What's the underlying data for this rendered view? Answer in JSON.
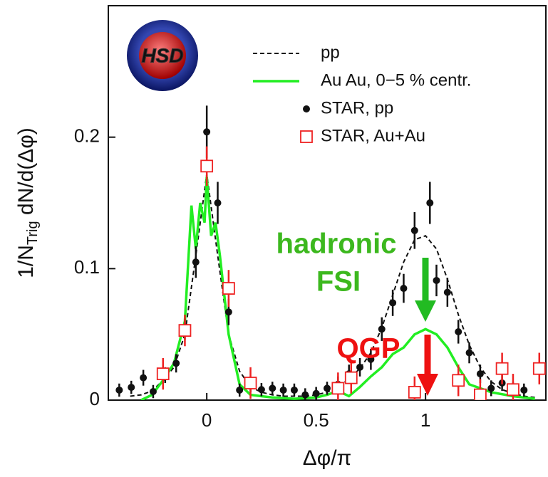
{
  "chart_data": {
    "type": "line",
    "y_label": [
      "1/N",
      "Trig",
      " dN/d(Δφ)"
    ],
    "x_label": "Δφ/π",
    "logo": "HSD",
    "annotations": [
      {
        "text": "hadronic",
        "color": "#3cb81e"
      },
      {
        "text": "FSI",
        "color": "#3cb81e"
      },
      {
        "text": "QGP",
        "color": "#ee1111"
      }
    ],
    "xlim": [
      -0.45,
      1.55
    ],
    "ylim": [
      0,
      0.3
    ],
    "xticks": [
      0,
      0.5,
      1
    ],
    "yticks": [
      0,
      0.1,
      0.2
    ],
    "legend": "top-right",
    "series": [
      {
        "name": "pp",
        "style": "dashed",
        "color": "#111111",
        "x": [
          -0.35,
          -0.3,
          -0.25,
          -0.2,
          -0.15,
          -0.1,
          -0.05,
          0,
          0.05,
          0.1,
          0.15,
          0.2,
          0.25,
          0.3,
          0.35,
          0.4,
          0.45,
          0.5,
          0.55,
          0.6,
          0.65,
          0.7,
          0.75,
          0.8,
          0.85,
          0.9,
          0.95,
          1.0,
          1.05,
          1.1,
          1.15,
          1.2,
          1.25,
          1.3,
          1.35,
          1.4,
          1.45,
          1.5
        ],
        "values": [
          0.003,
          0.004,
          0.007,
          0.015,
          0.025,
          0.05,
          0.11,
          0.172,
          0.11,
          0.05,
          0.022,
          0.01,
          0.006,
          0.004,
          0.003,
          0.003,
          0.003,
          0.004,
          0.006,
          0.01,
          0.016,
          0.024,
          0.036,
          0.055,
          0.08,
          0.105,
          0.122,
          0.125,
          0.115,
          0.092,
          0.065,
          0.042,
          0.025,
          0.014,
          0.008,
          0.005,
          0.003,
          0.002
        ]
      },
      {
        "name": "Au Au, 0−5 % centr.",
        "style": "solid",
        "color": "#22ee22",
        "x": [
          -0.3,
          -0.25,
          -0.2,
          -0.15,
          -0.1,
          -0.07,
          -0.05,
          -0.03,
          -0.01,
          0,
          0.02,
          0.04,
          0.06,
          0.1,
          0.15,
          0.2,
          0.25,
          0.3,
          0.4,
          0.5,
          0.55,
          0.6,
          0.65,
          0.7,
          0.75,
          0.8,
          0.85,
          0.9,
          0.95,
          1.0,
          1.05,
          1.1,
          1.15,
          1.2,
          1.3,
          1.4,
          1.5
        ],
        "values": [
          0,
          0.004,
          0.015,
          0.028,
          0.06,
          0.148,
          0.115,
          0.15,
          0.135,
          0.17,
          0.125,
          0.135,
          0.11,
          0.05,
          0.012,
          0.004,
          0.003,
          0.002,
          0.001,
          0.002,
          0.004,
          0.007,
          0.003,
          0.01,
          0.018,
          0.025,
          0.035,
          0.04,
          0.05,
          0.054,
          0.05,
          0.04,
          0.025,
          0.012,
          0.006,
          0.003,
          0.001
        ]
      },
      {
        "name": "STAR, pp",
        "style": "dot",
        "color": "#111111",
        "x": [
          -0.4,
          -0.345,
          -0.29,
          -0.245,
          -0.19,
          -0.14,
          -0.1,
          -0.05,
          0,
          0.05,
          0.1,
          0.15,
          0.2,
          0.25,
          0.3,
          0.35,
          0.4,
          0.45,
          0.5,
          0.55,
          0.6,
          0.65,
          0.7,
          0.75,
          0.8,
          0.85,
          0.9,
          0.95,
          1.02,
          1.05,
          1.1,
          1.15,
          1.2,
          1.25,
          1.3,
          1.35,
          1.4,
          1.45
        ],
        "values": [
          0.0076,
          0.0097,
          0.017,
          0.0065,
          0.019,
          0.028,
          0.054,
          0.105,
          0.204,
          0.15,
          0.067,
          0.0076,
          0.012,
          0.008,
          0.009,
          0.0076,
          0.0076,
          0.004,
          0.005,
          0.009,
          0.012,
          0.02,
          0.025,
          0.031,
          0.054,
          0.074,
          0.085,
          0.129,
          0.15,
          0.091,
          0.082,
          0.052,
          0.036,
          0.02,
          0.009,
          0.013,
          0.009,
          0.0076
        ],
        "errors": [
          0.005,
          0.005,
          0.006,
          0.005,
          0.006,
          0.007,
          0.008,
          0.012,
          0.02,
          0.016,
          0.01,
          0.005,
          0.006,
          0.005,
          0.005,
          0.005,
          0.005,
          0.005,
          0.005,
          0.005,
          0.006,
          0.007,
          0.007,
          0.008,
          0.009,
          0.01,
          0.011,
          0.014,
          0.016,
          0.012,
          0.011,
          0.009,
          0.008,
          0.007,
          0.006,
          0.006,
          0.005,
          0.005
        ]
      },
      {
        "name": "STAR, Au+Au",
        "style": "square",
        "color": "#ee2222",
        "x": [
          -0.2,
          -0.1,
          0,
          0.1,
          0.2,
          0.6,
          0.66,
          0.95,
          1.15,
          1.25,
          1.35,
          1.4,
          1.52
        ],
        "values": [
          0.02,
          0.053,
          0.178,
          0.085,
          0.013,
          0.009,
          0.017,
          0.006,
          0.015,
          0.004,
          0.024,
          0.008,
          0.024
        ],
        "errors": [
          0.012,
          0.012,
          0.015,
          0.014,
          0.012,
          0.012,
          0.012,
          0.012,
          0.012,
          0.012,
          0.012,
          0.012,
          0.012
        ]
      }
    ]
  }
}
